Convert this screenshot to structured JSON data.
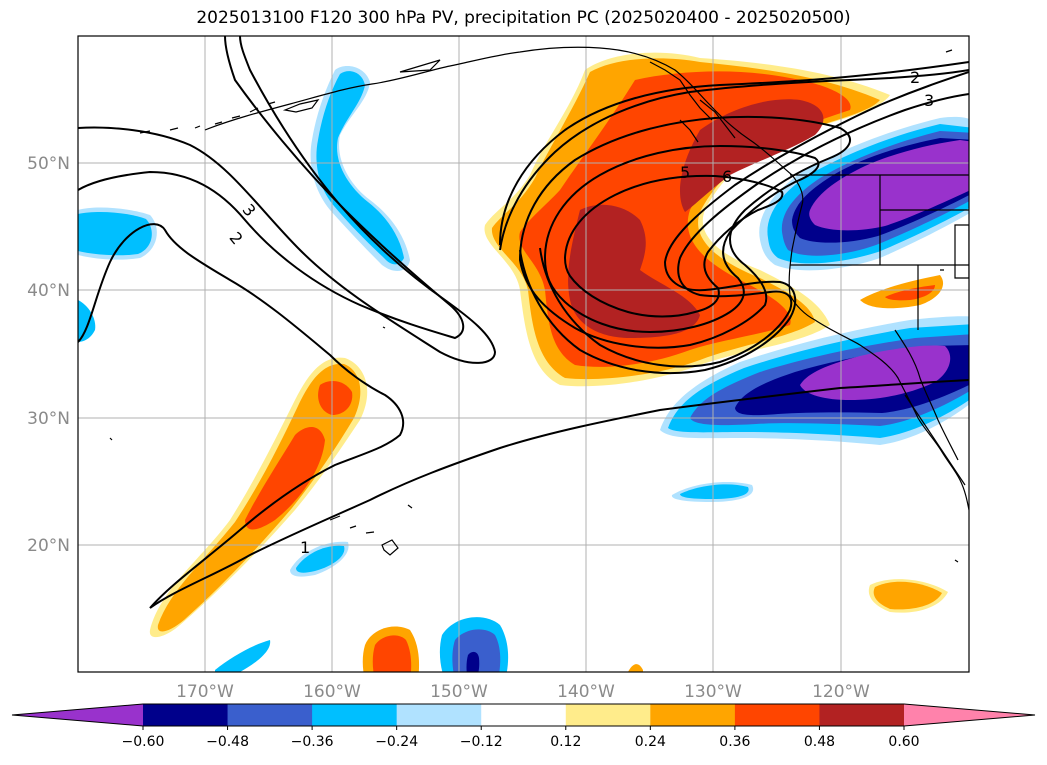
{
  "title": "2025013100 F120 300 hPa PV, precipitation PC (2025020400 - 2025020500)",
  "latitude_labels": [
    "50°N",
    "40°N",
    "30°N",
    "20°N"
  ],
  "longitude_labels": [
    "170°W",
    "160°W",
    "150°W",
    "140°W",
    "130°W",
    "120°W"
  ],
  "contour_labels": [
    "1",
    "2",
    "3",
    "2",
    "3",
    "5",
    "6"
  ],
  "colorbar": {
    "ticks": [
      "−0.60",
      "−0.48",
      "−0.36",
      "−0.24",
      "−0.12",
      "0.12",
      "0.24",
      "0.36",
      "0.48",
      "0.60"
    ],
    "colors": [
      "#9932cc",
      "#00008b",
      "#3a5fcd",
      "#00bfff",
      "#b0e2ff",
      "#ffffff",
      "#ffec8b",
      "#ffa500",
      "#ff4500",
      "#b22222",
      "#ff82ab"
    ]
  },
  "colors": {
    "grid": "#b0b0b0",
    "coast": "#000000",
    "frame": "#000000"
  }
}
